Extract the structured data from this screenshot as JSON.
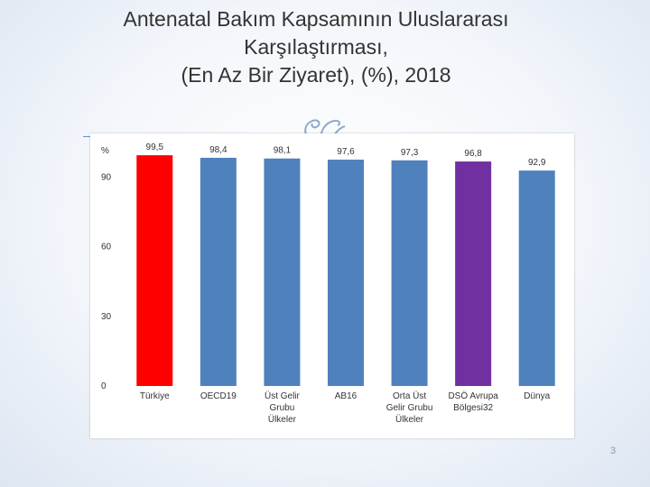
{
  "slide": {
    "title_lines": [
      "Antenatal Bakım Kapsamının Uluslararası",
      "Karşılaştırması,",
      "(En Az Bir Ziyaret), (%), 2018"
    ],
    "page_number": "3"
  },
  "chart_data": {
    "type": "bar",
    "ylabel": "%",
    "ylim": [
      0,
      105
    ],
    "yticks": [
      0,
      30,
      60,
      90
    ],
    "grid": false,
    "categories": [
      [
        "Türkiye"
      ],
      [
        "OECD19"
      ],
      [
        "Üst Gelir",
        "Grubu",
        "Ülkeler"
      ],
      [
        "AB16"
      ],
      [
        "Orta Üst",
        "Gelir Grubu",
        "Ülkeler"
      ],
      [
        "DSÖ Avrupa",
        "Bölgesi32"
      ],
      [
        "Dünya"
      ]
    ],
    "values": [
      99.5,
      98.4,
      98.1,
      97.6,
      97.3,
      96.8,
      92.9
    ],
    "value_labels": [
      "99,5",
      "98,4",
      "98,1",
      "97,6",
      "97,3",
      "96,8",
      "92,9"
    ],
    "colors": [
      "#ff0000",
      "#4f81bd",
      "#4f81bd",
      "#4f81bd",
      "#4f81bd",
      "#7030a0",
      "#4f81bd"
    ]
  }
}
